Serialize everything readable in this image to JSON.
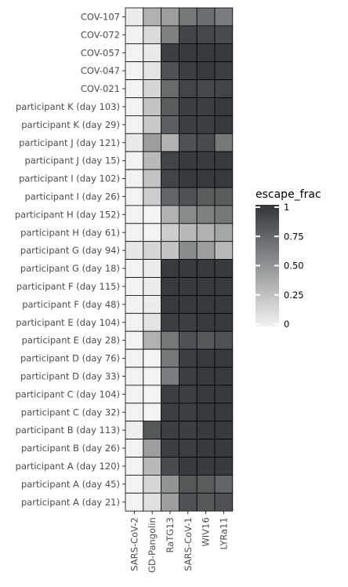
{
  "chart_data": {
    "type": "heatmap",
    "title": "",
    "xlabel": "",
    "ylabel": "",
    "x": [
      "SARS-CoV-2",
      "GD-Pangolin",
      "RaTG13",
      "SARS-CoV-1",
      "WIV16",
      "LYRa11"
    ],
    "y": [
      "COV-107",
      "COV-072",
      "COV-057",
      "COV-047",
      "COV-021",
      "participant K (day 103)",
      "participant K (day 29)",
      "participant J (day 121)",
      "participant J (day 15)",
      "participant I (day 102)",
      "participant I (day 26)",
      "participant H (day 152)",
      "participant H (day 61)",
      "participant G (day 94)",
      "participant G (day 18)",
      "participant F (day 115)",
      "participant F (day 48)",
      "participant E (day 104)",
      "participant E (day 28)",
      "participant D (day 76)",
      "participant D (day 33)",
      "participant C (day 104)",
      "participant C (day 32)",
      "participant B (day 113)",
      "participant B (day 26)",
      "participant A (day 120)",
      "participant A (day 45)",
      "participant A (day 21)"
    ],
    "values": [
      [
        0.03,
        0.35,
        0.45,
        0.65,
        0.7,
        0.62
      ],
      [
        0.0,
        0.12,
        0.6,
        0.92,
        0.9,
        0.88
      ],
      [
        0.0,
        0.05,
        0.95,
        0.97,
        0.97,
        0.97
      ],
      [
        0.0,
        0.08,
        0.85,
        0.95,
        0.97,
        0.95
      ],
      [
        0.0,
        0.15,
        0.72,
        0.92,
        0.9,
        0.92
      ],
      [
        0.0,
        0.25,
        0.8,
        0.95,
        0.95,
        0.97
      ],
      [
        0.0,
        0.22,
        0.78,
        0.95,
        0.95,
        0.97
      ],
      [
        0.05,
        0.45,
        0.35,
        0.85,
        0.88,
        0.65
      ],
      [
        0.0,
        0.3,
        0.92,
        0.97,
        0.97,
        0.97
      ],
      [
        0.0,
        0.25,
        0.92,
        0.97,
        0.97,
        0.97
      ],
      [
        0.0,
        0.2,
        0.75,
        0.85,
        0.8,
        0.8
      ],
      [
        0.0,
        0.0,
        0.35,
        0.55,
        0.6,
        0.65
      ],
      [
        0.0,
        0.0,
        0.2,
        0.3,
        0.35,
        0.4
      ],
      [
        0.06,
        0.15,
        0.25,
        0.55,
        0.45,
        0.3
      ],
      [
        0.0,
        0.03,
        0.97,
        0.97,
        0.97,
        0.97
      ],
      [
        0.0,
        0.03,
        0.97,
        0.97,
        0.97,
        0.97
      ],
      [
        0.0,
        0.03,
        0.97,
        0.97,
        0.97,
        0.97
      ],
      [
        0.0,
        0.08,
        0.95,
        0.95,
        0.97,
        0.97
      ],
      [
        0.0,
        0.35,
        0.65,
        0.85,
        0.82,
        0.85
      ],
      [
        0.0,
        0.0,
        0.65,
        0.95,
        0.97,
        0.97
      ],
      [
        0.0,
        0.0,
        0.62,
        0.95,
        0.97,
        0.97
      ],
      [
        0.0,
        0.0,
        0.95,
        0.95,
        0.97,
        0.97
      ],
      [
        0.0,
        0.0,
        0.95,
        0.95,
        0.97,
        0.97
      ],
      [
        0.02,
        0.82,
        0.95,
        0.95,
        0.97,
        0.97
      ],
      [
        0.0,
        0.45,
        0.95,
        0.95,
        0.97,
        0.97
      ],
      [
        0.0,
        0.3,
        0.88,
        0.97,
        0.97,
        0.97
      ],
      [
        0.0,
        0.15,
        0.5,
        0.82,
        0.8,
        0.75
      ],
      [
        0.0,
        0.1,
        0.45,
        0.85,
        0.82,
        0.85
      ]
    ],
    "zlim": [
      0,
      1
    ],
    "grid": false,
    "legend": {
      "title": "escape_frac",
      "position": "right",
      "ticks": [
        0,
        0.25,
        0.5,
        0.75,
        1
      ],
      "tick_labels": [
        "0",
        "0.25",
        "0.50",
        "0.75",
        "1"
      ],
      "low_color": "#f2f2f2",
      "high_color": "#303638"
    }
  }
}
